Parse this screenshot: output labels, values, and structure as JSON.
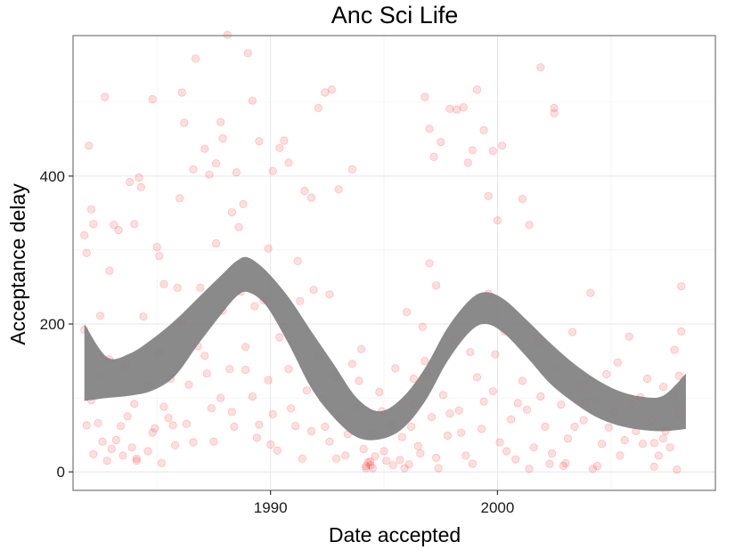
{
  "chart_data": {
    "type": "scatter",
    "title": "Anc Sci Life",
    "xlabel": "Date accepted",
    "ylabel": "Acceptance delay",
    "xlim": [
      1981.3,
      2009.6
    ],
    "ylim": [
      -25,
      590
    ],
    "x_ticks": [
      1990,
      2000
    ],
    "y_ticks": [
      0,
      200,
      400
    ],
    "x_tick_labels": [
      "1990",
      "2000"
    ],
    "y_tick_labels": [
      "0",
      "200",
      "400"
    ],
    "grid": true,
    "point_color": "#ff0000",
    "smooth_color": "#808080",
    "points": [
      [
        1981.8,
        320
      ],
      [
        1981.9,
        296
      ],
      [
        1982.0,
        441
      ],
      [
        1982.1,
        355
      ],
      [
        1982.2,
        335
      ],
      [
        1982.5,
        211
      ],
      [
        1982.7,
        507
      ],
      [
        1982.9,
        272
      ],
      [
        1983.1,
        334
      ],
      [
        1983.3,
        327
      ],
      [
        1983.8,
        392
      ],
      [
        1984.0,
        335
      ],
      [
        1984.3,
        385
      ],
      [
        1984.2,
        398
      ],
      [
        1984.8,
        504
      ],
      [
        1985.0,
        304
      ],
      [
        1985.1,
        292
      ],
      [
        1985.3,
        254
      ],
      [
        1985.9,
        249
      ],
      [
        1986.1,
        513
      ],
      [
        1986.2,
        472
      ],
      [
        1986.0,
        370
      ],
      [
        1986.6,
        409
      ],
      [
        1986.7,
        559
      ],
      [
        1987.1,
        437
      ],
      [
        1987.3,
        402
      ],
      [
        1987.6,
        417
      ],
      [
        1987.8,
        473
      ],
      [
        1987.9,
        451
      ],
      [
        1988.1,
        591
      ],
      [
        1988.3,
        351
      ],
      [
        1988.5,
        405
      ],
      [
        1988.6,
        331
      ],
      [
        1988.8,
        362
      ],
      [
        1989.0,
        566
      ],
      [
        1989.2,
        502
      ],
      [
        1989.5,
        447
      ],
      [
        1989.9,
        302
      ],
      [
        1990.1,
        407
      ],
      [
        1990.4,
        438
      ],
      [
        1990.6,
        448
      ],
      [
        1990.8,
        418
      ],
      [
        1991.2,
        285
      ],
      [
        1991.5,
        380
      ],
      [
        1991.8,
        371
      ],
      [
        1992.1,
        492
      ],
      [
        1992.4,
        513
      ],
      [
        1992.7,
        517
      ],
      [
        1993.0,
        382
      ],
      [
        1993.6,
        409
      ],
      [
        1996.8,
        507
      ],
      [
        1997.0,
        464
      ],
      [
        1997.2,
        426
      ],
      [
        1997.5,
        446
      ],
      [
        1997.9,
        491
      ],
      [
        1998.2,
        490
      ],
      [
        1998.5,
        493
      ],
      [
        1998.7,
        418
      ],
      [
        1998.9,
        435
      ],
      [
        1999.1,
        517
      ],
      [
        1999.4,
        462
      ],
      [
        1999.6,
        373
      ],
      [
        1999.8,
        434
      ],
      [
        2000.2,
        441
      ],
      [
        2000.0,
        340
      ],
      [
        2001.1,
        369
      ],
      [
        2001.4,
        334
      ],
      [
        2001.9,
        547
      ],
      [
        2002.5,
        492
      ],
      [
        2002.5,
        485
      ],
      [
        1981.8,
        192
      ],
      [
        1982.1,
        97
      ],
      [
        1982.4,
        66
      ],
      [
        1982.6,
        41
      ],
      [
        1982.9,
        152
      ],
      [
        1983.2,
        43
      ],
      [
        1983.5,
        22
      ],
      [
        1983.7,
        75
      ],
      [
        1983.9,
        33
      ],
      [
        1984.1,
        15
      ],
      [
        1984.4,
        210
      ],
      [
        1984.6,
        116
      ],
      [
        1984.8,
        53
      ],
      [
        1985.1,
        161
      ],
      [
        1985.3,
        88
      ],
      [
        1985.6,
        126
      ],
      [
        1985.8,
        36
      ],
      [
        1986.1,
        202
      ],
      [
        1986.4,
        118
      ],
      [
        1986.6,
        40
      ],
      [
        1986.9,
        249
      ],
      [
        1987.1,
        157
      ],
      [
        1987.4,
        86
      ],
      [
        1987.6,
        309
      ],
      [
        1987.9,
        218
      ],
      [
        1988.2,
        139
      ],
      [
        1988.4,
        61
      ],
      [
        1988.7,
        244
      ],
      [
        1988.9,
        169
      ],
      [
        1989.2,
        102
      ],
      [
        1989.4,
        46
      ],
      [
        1989.7,
        232
      ],
      [
        1989.9,
        124
      ],
      [
        1990.1,
        78
      ],
      [
        1990.3,
        29
      ],
      [
        1990.6,
        196
      ],
      [
        1990.8,
        139
      ],
      [
        1991.1,
        62
      ],
      [
        1991.3,
        231
      ],
      [
        1991.6,
        110
      ],
      [
        1991.8,
        55
      ],
      [
        1992.1,
        157
      ],
      [
        1992.3,
        99
      ],
      [
        1992.6,
        41
      ],
      [
        1992.8,
        128
      ],
      [
        1993.1,
        72
      ],
      [
        1993.3,
        22
      ],
      [
        1993.6,
        146
      ],
      [
        1993.8,
        88
      ],
      [
        1994.1,
        31
      ],
      [
        1994.3,
        13
      ],
      [
        1994.5,
        52
      ],
      [
        1994.8,
        108
      ],
      [
        1995.0,
        28
      ],
      [
        1995.3,
        64
      ],
      [
        1995.5,
        140
      ],
      [
        1995.8,
        47
      ],
      [
        1996.0,
        216
      ],
      [
        1996.3,
        93
      ],
      [
        1996.5,
        35
      ],
      [
        1996.8,
        150
      ],
      [
        1997.1,
        74
      ],
      [
        1997.3,
        19
      ],
      [
        1997.6,
        104
      ],
      [
        1997.8,
        49
      ],
      [
        1998.1,
        178
      ],
      [
        1998.3,
        83
      ],
      [
        1998.6,
        22
      ],
      [
        1998.8,
        162
      ],
      [
        1999.1,
        128
      ],
      [
        1999.3,
        58
      ],
      [
        1999.6,
        241
      ],
      [
        1999.8,
        109
      ],
      [
        2000.1,
        40
      ],
      [
        2000.3,
        190
      ],
      [
        2000.6,
        71
      ],
      [
        2000.8,
        17
      ],
      [
        2001.1,
        123
      ],
      [
        2001.3,
        84
      ],
      [
        2001.6,
        33
      ],
      [
        2001.8,
        176
      ],
      [
        2002.1,
        61
      ],
      [
        2002.3,
        11
      ],
      [
        2002.6,
        140
      ],
      [
        2002.8,
        91
      ],
      [
        2003.1,
        45
      ],
      [
        2003.3,
        189
      ],
      [
        2003.6,
        115
      ],
      [
        2003.8,
        70
      ],
      [
        2004.1,
        242
      ],
      [
        2004.3,
        98
      ],
      [
        2004.6,
        38
      ],
      [
        2004.8,
        132
      ],
      [
        2005.1,
        81
      ],
      [
        2005.3,
        148
      ],
      [
        2005.6,
        43
      ],
      [
        2005.8,
        183
      ],
      [
        2006.1,
        55
      ],
      [
        2006.3,
        101
      ],
      [
        2006.6,
        126
      ],
      [
        2006.8,
        69
      ],
      [
        2007.1,
        22
      ],
      [
        2007.3,
        115
      ],
      [
        2007.6,
        33
      ],
      [
        2007.8,
        165
      ],
      [
        2008.0,
        130
      ],
      [
        2008.1,
        190
      ],
      [
        2008.1,
        251
      ],
      [
        2008.0,
        78
      ],
      [
        2007.9,
        3
      ],
      [
        1981.9,
        63
      ],
      [
        1982.2,
        24
      ],
      [
        1982.5,
        128
      ],
      [
        1982.8,
        15
      ],
      [
        1983.4,
        62
      ],
      [
        1983.6,
        144
      ],
      [
        1984.0,
        92
      ],
      [
        1984.6,
        28
      ],
      [
        1985.2,
        12
      ],
      [
        1985.5,
        73
      ],
      [
        1986.3,
        65
      ],
      [
        1986.8,
        170
      ],
      [
        1987.2,
        133
      ],
      [
        1987.8,
        100
      ],
      [
        1988.3,
        81
      ],
      [
        1988.9,
        138
      ],
      [
        1989.5,
        64
      ],
      [
        1990.0,
        37
      ],
      [
        1990.9,
        86
      ],
      [
        1991.4,
        18
      ],
      [
        1992.4,
        61
      ],
      [
        1992.9,
        18
      ],
      [
        1993.4,
        51
      ],
      [
        1993.9,
        123
      ],
      [
        1994.2,
        5
      ],
      [
        1994.4,
        9
      ],
      [
        1994.6,
        21
      ],
      [
        1994.9,
        82
      ],
      [
        1995.4,
        9
      ],
      [
        1995.7,
        16
      ],
      [
        1996.2,
        61
      ],
      [
        1996.6,
        25
      ],
      [
        1996.9,
        130
      ],
      [
        1997.4,
        5
      ],
      [
        1997.9,
        79
      ],
      [
        1998.4,
        53
      ],
      [
        1998.9,
        11
      ],
      [
        1999.4,
        95
      ],
      [
        1999.9,
        159
      ],
      [
        2000.4,
        28
      ],
      [
        2000.9,
        93
      ],
      [
        2001.4,
        4
      ],
      [
        2001.9,
        102
      ],
      [
        2002.4,
        25
      ],
      [
        2002.9,
        8
      ],
      [
        2003.4,
        61
      ],
      [
        2003.9,
        94
      ],
      [
        2004.4,
        8
      ],
      [
        2004.9,
        60
      ],
      [
        2005.4,
        22
      ],
      [
        2005.9,
        92
      ],
      [
        2006.4,
        38
      ],
      [
        2006.9,
        7
      ],
      [
        2007.4,
        55
      ],
      [
        2007.9,
        93
      ],
      [
        2006.9,
        39
      ],
      [
        2007.3,
        45
      ],
      [
        2007.7,
        103
      ],
      [
        2004.2,
        4
      ],
      [
        2003.0,
        12
      ],
      [
        1994.4,
        14
      ],
      [
        1994.2,
        8
      ],
      [
        1994.5,
        5
      ],
      [
        1995.9,
        5
      ],
      [
        1996.1,
        10
      ],
      [
        1995.1,
        15
      ],
      [
        1996.3,
        126
      ],
      [
        1996.7,
        196
      ],
      [
        1997.0,
        282
      ],
      [
        1997.3,
        252
      ],
      [
        1985.7,
        63
      ],
      [
        1984.1,
        18
      ],
      [
        1983.0,
        31
      ],
      [
        1984.9,
        59
      ],
      [
        1987.5,
        41
      ],
      [
        1989.3,
        224
      ],
      [
        1990.4,
        182
      ],
      [
        1991.9,
        246
      ],
      [
        1992.6,
        240
      ],
      [
        1994.0,
        166
      ]
    ],
    "smooth": {
      "x": [
        1981.8,
        1982.8,
        1983.8,
        1984.8,
        1985.8,
        1986.8,
        1987.8,
        1988.5,
        1989.0,
        1989.8,
        1990.8,
        1991.8,
        1992.8,
        1993.8,
        1994.8,
        1995.8,
        1996.8,
        1997.8,
        1998.8,
        1999.5,
        2000.3,
        2001.3,
        2002.3,
        2003.3,
        2004.3,
        2005.3,
        2006.3,
        2007.3,
        2008.3
      ],
      "upper": [
        200,
        155,
        160,
        180,
        205,
        235,
        265,
        285,
        290,
        272,
        236,
        190,
        145,
        100,
        82,
        100,
        140,
        195,
        233,
        243,
        233,
        205,
        175,
        148,
        126,
        110,
        102,
        103,
        133
      ],
      "lower": [
        96,
        100,
        103,
        110,
        130,
        172,
        212,
        237,
        243,
        225,
        173,
        113,
        73,
        47,
        44,
        58,
        95,
        150,
        190,
        200,
        187,
        155,
        120,
        95,
        75,
        63,
        57,
        55,
        58
      ]
    }
  }
}
